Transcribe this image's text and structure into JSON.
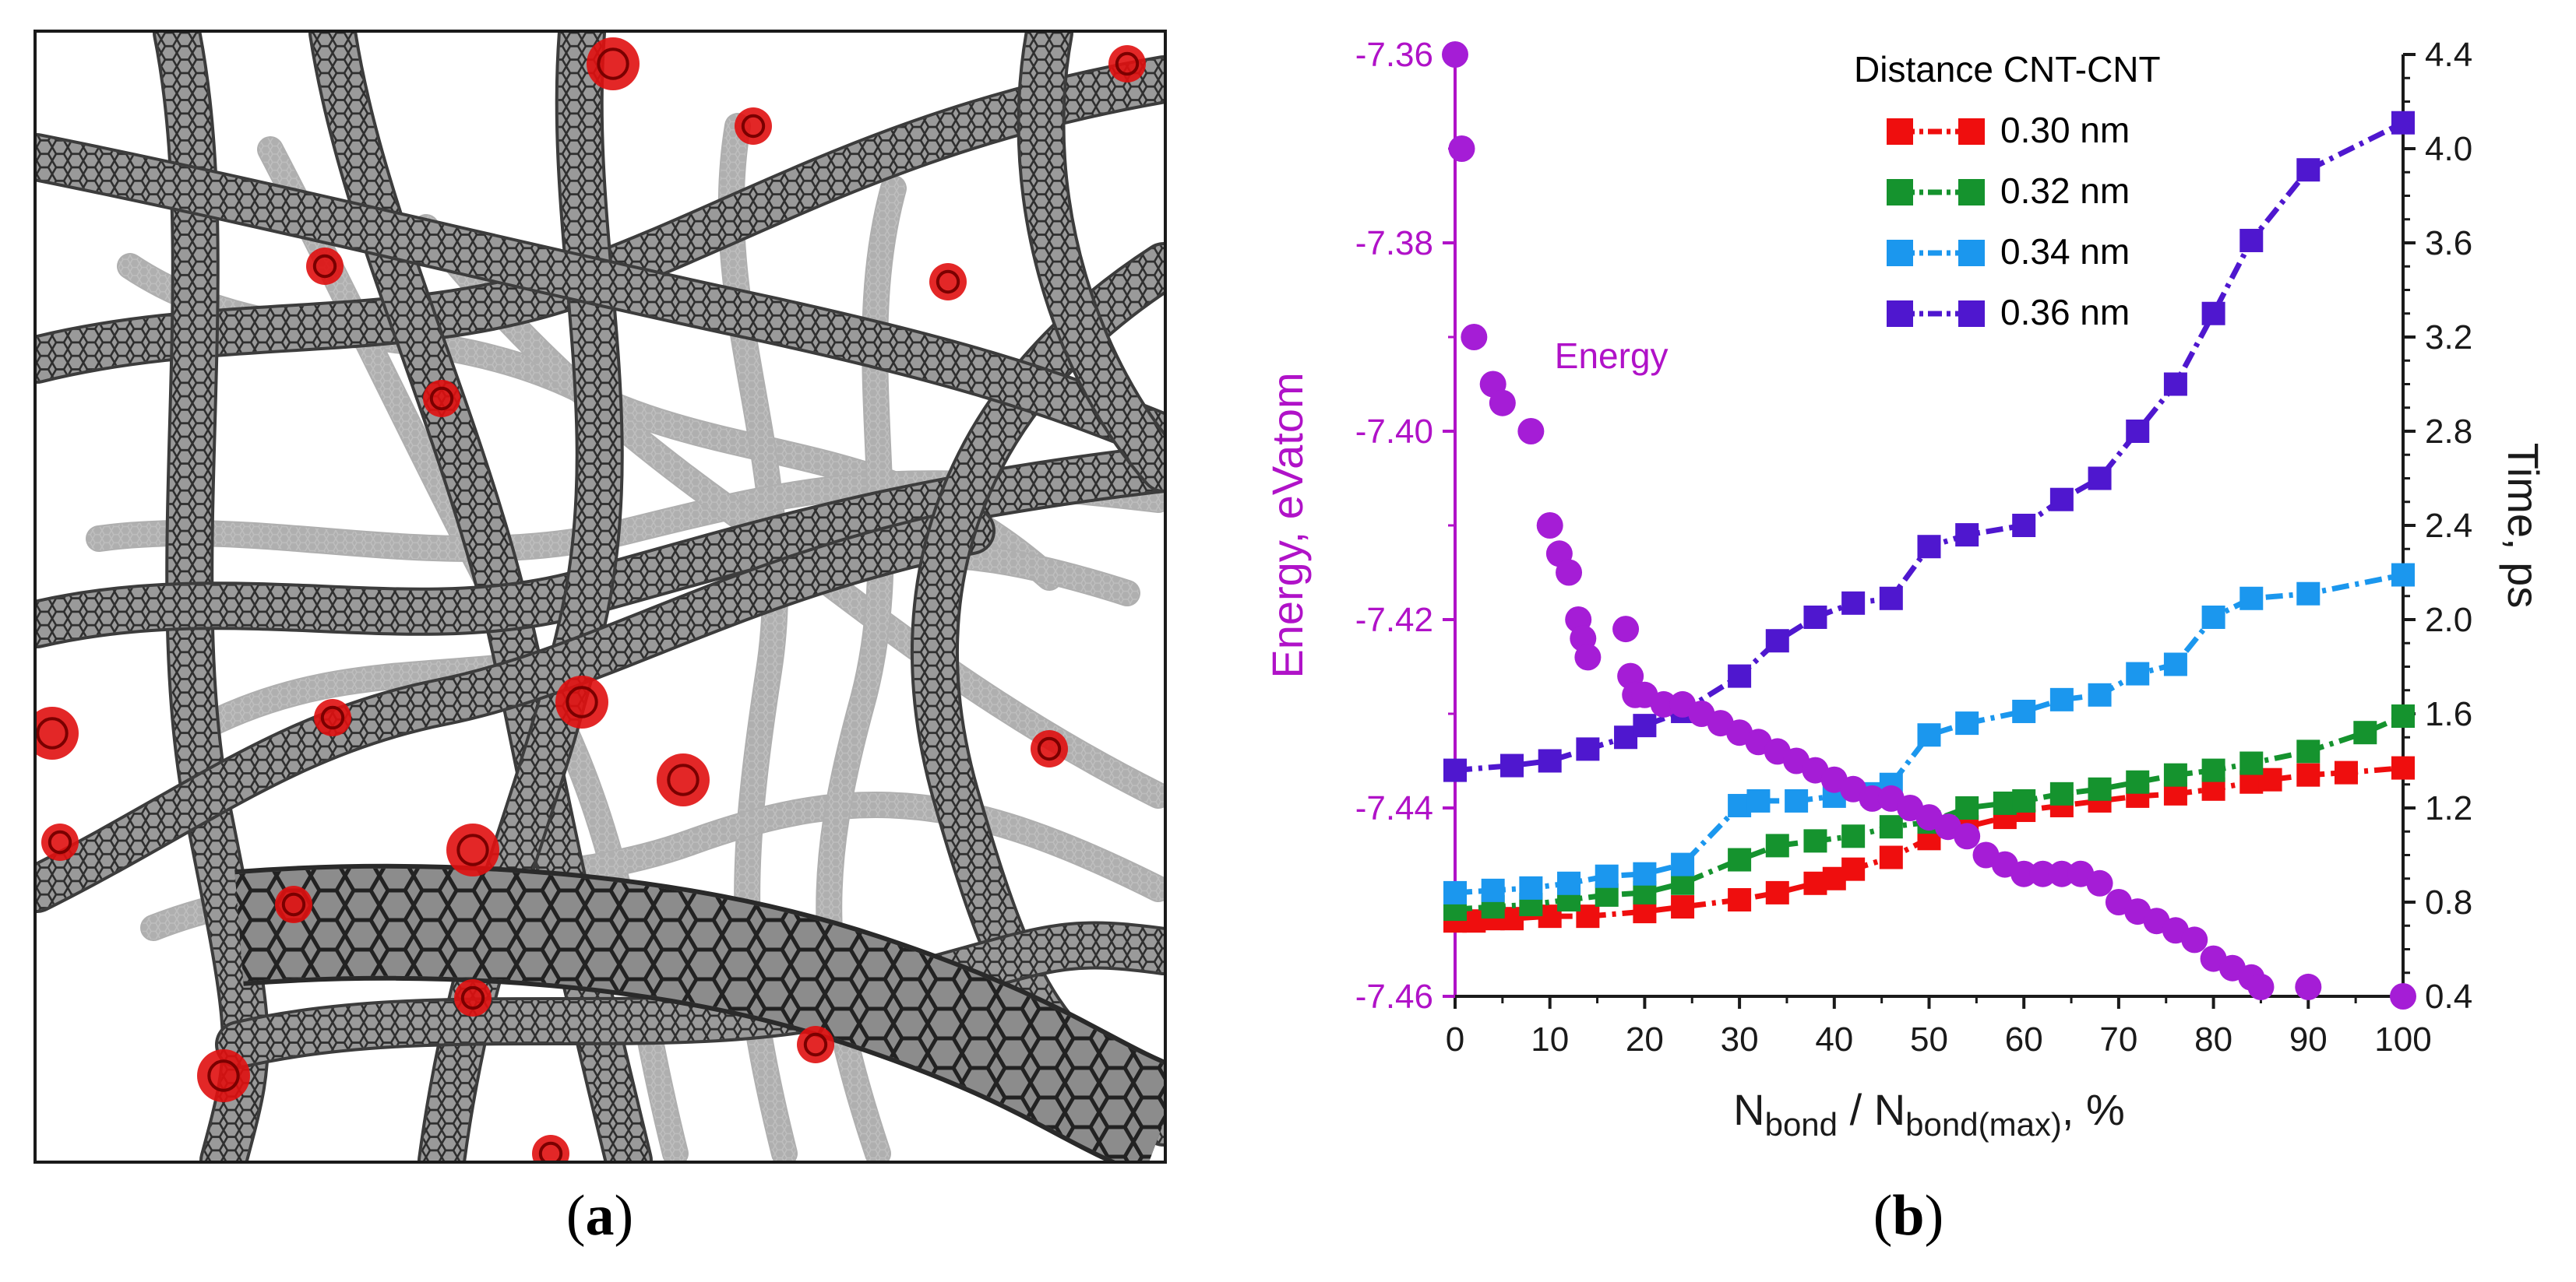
{
  "panel_a": {
    "caption_open": "(",
    "caption_letter": "a",
    "caption_close": ")",
    "image_description_icon": "carbon-nanotube-network-icon",
    "colors": {
      "tube": "#6e6e6e",
      "tube_dark": "#3c3c3c",
      "bond": "#e01010"
    }
  },
  "panel_b": {
    "caption_open": "(",
    "caption_letter": "b",
    "caption_close": ")"
  },
  "chart_data": {
    "type": "scatter",
    "title": "",
    "xlabel_main": "N",
    "xlabel_sub1": "bond",
    "xlabel_mid": " / N",
    "xlabel_sub2": "bond(max)",
    "xlabel_end": ", %",
    "ylabel_left": "Energy, eVatom",
    "ylabel_right": "Time, ps",
    "xlim": [
      0,
      100
    ],
    "ylim_left": [
      -7.46,
      -7.36
    ],
    "ylim_right": [
      0.4,
      4.4
    ],
    "x_ticks": [
      "0",
      "10",
      "20",
      "30",
      "40",
      "50",
      "60",
      "70",
      "80",
      "90",
      "100"
    ],
    "y_left_ticks": [
      "-7.36",
      "-7.38",
      "-7.40",
      "-7.42",
      "-7.44",
      "-7.46"
    ],
    "y_right_ticks": [
      "4.4",
      "4.0",
      "3.6",
      "3.2",
      "2.8",
      "2.4",
      "2.0",
      "1.6",
      "1.2",
      "0.8",
      "0.4"
    ],
    "annotation": "Energy",
    "legend_title": "Distance CNT-CNT",
    "energy_series": {
      "name": "Energy",
      "axis": "left",
      "color": "#a51dd6",
      "x": [
        0,
        0.7,
        2,
        4,
        5,
        8,
        10,
        11,
        12,
        13,
        13.5,
        14,
        18,
        18.5,
        19,
        20,
        22,
        24,
        26,
        28,
        30,
        32,
        34,
        36,
        38,
        40,
        42,
        44,
        46,
        48,
        50,
        52,
        54,
        56,
        58,
        60,
        62,
        64,
        66,
        68,
        70,
        72,
        74,
        76,
        78,
        80,
        82,
        84,
        85,
        90,
        100
      ],
      "values": [
        -7.36,
        -7.37,
        -7.39,
        -7.395,
        -7.397,
        -7.4,
        -7.41,
        -7.413,
        -7.415,
        -7.42,
        -7.422,
        -7.424,
        -7.421,
        -7.426,
        -7.428,
        -7.428,
        -7.429,
        -7.429,
        -7.43,
        -7.431,
        -7.432,
        -7.433,
        -7.434,
        -7.435,
        -7.436,
        -7.437,
        -7.438,
        -7.439,
        -7.439,
        -7.44,
        -7.441,
        -7.442,
        -7.443,
        -7.445,
        -7.446,
        -7.447,
        -7.447,
        -7.447,
        -7.447,
        -7.448,
        -7.45,
        -7.451,
        -7.452,
        -7.453,
        -7.454,
        -7.456,
        -7.457,
        -7.458,
        -7.459,
        -7.459,
        -7.46
      ]
    },
    "series": [
      {
        "name": "0.30 nm",
        "axis": "right",
        "color": "#ef0e0e",
        "x": [
          0,
          2,
          4,
          6,
          10,
          14,
          20,
          24,
          30,
          34,
          38,
          40,
          42,
          46,
          50,
          54,
          58,
          60,
          64,
          68,
          72,
          76,
          80,
          84,
          86,
          90,
          94,
          100
        ],
        "values": [
          0.72,
          0.72,
          0.73,
          0.73,
          0.74,
          0.74,
          0.76,
          0.78,
          0.81,
          0.84,
          0.88,
          0.9,
          0.94,
          0.99,
          1.07,
          1.12,
          1.16,
          1.19,
          1.21,
          1.23,
          1.25,
          1.26,
          1.28,
          1.31,
          1.32,
          1.34,
          1.35,
          1.37
        ]
      },
      {
        "name": "0.32 nm",
        "axis": "right",
        "color": "#15932e",
        "x": [
          0,
          4,
          8,
          12,
          16,
          20,
          24,
          30,
          34,
          38,
          42,
          46,
          50,
          54,
          58,
          60,
          64,
          68,
          72,
          76,
          80,
          84,
          90,
          96,
          100
        ],
        "values": [
          0.77,
          0.78,
          0.79,
          0.81,
          0.83,
          0.84,
          0.88,
          0.98,
          1.04,
          1.06,
          1.08,
          1.12,
          1.14,
          1.2,
          1.22,
          1.23,
          1.26,
          1.28,
          1.31,
          1.34,
          1.36,
          1.39,
          1.44,
          1.52,
          1.59
        ]
      },
      {
        "name": "0.34 nm",
        "axis": "right",
        "color": "#1b97ee",
        "x": [
          0,
          4,
          8,
          12,
          16,
          20,
          24,
          30,
          32,
          36,
          40,
          44,
          46,
          50,
          54,
          60,
          64,
          68,
          72,
          76,
          80,
          84,
          90,
          100
        ],
        "values": [
          0.84,
          0.85,
          0.86,
          0.88,
          0.91,
          0.92,
          0.96,
          1.21,
          1.23,
          1.23,
          1.25,
          1.26,
          1.3,
          1.51,
          1.56,
          1.61,
          1.66,
          1.68,
          1.77,
          1.81,
          2.01,
          2.09,
          2.11,
          2.19
        ]
      },
      {
        "name": "0.36 nm",
        "axis": "right",
        "color": "#4f17cf",
        "x": [
          0,
          6,
          10,
          14,
          18,
          20,
          24,
          30,
          34,
          38,
          42,
          46,
          50,
          54,
          60,
          64,
          68,
          72,
          76,
          80,
          84,
          90,
          100
        ],
        "values": [
          1.36,
          1.38,
          1.4,
          1.45,
          1.5,
          1.55,
          1.61,
          1.76,
          1.91,
          2.01,
          2.07,
          2.09,
          2.31,
          2.36,
          2.4,
          2.51,
          2.6,
          2.8,
          3.0,
          3.3,
          3.61,
          3.91,
          4.11
        ]
      }
    ]
  }
}
